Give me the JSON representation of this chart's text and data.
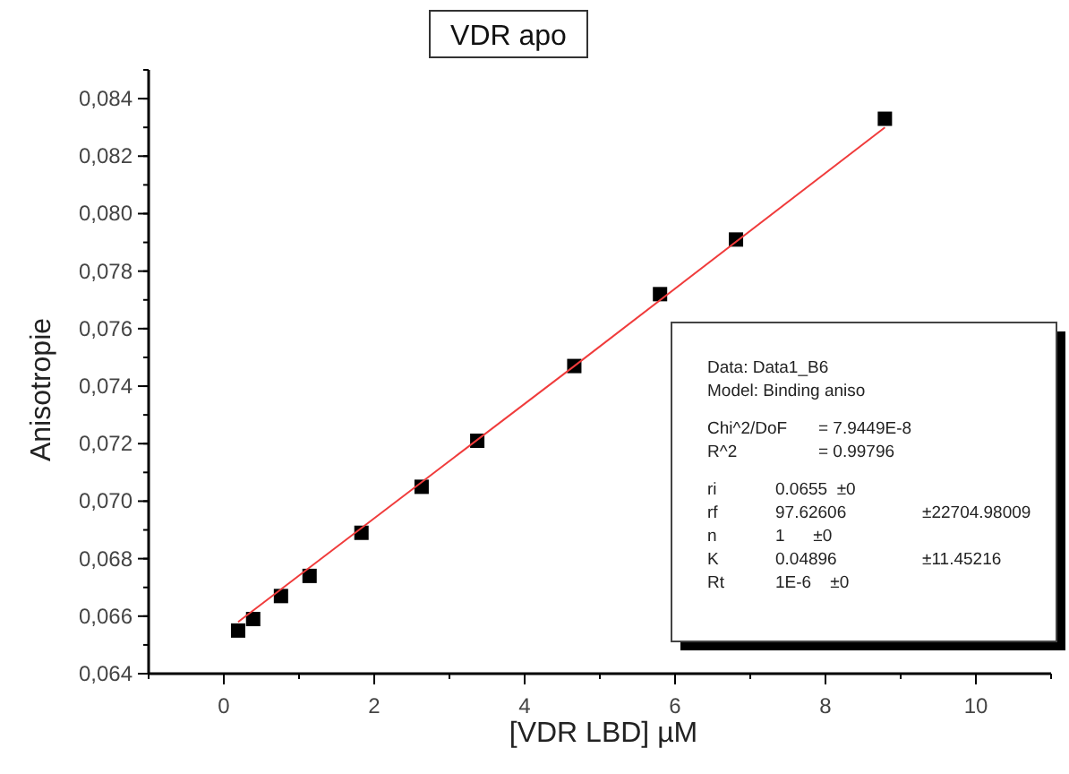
{
  "chart_data": {
    "type": "scatter",
    "title": "VDR apo",
    "xlabel": "[VDR LBD] µM",
    "ylabel": "Anisotropie",
    "xlim": [
      -1,
      11
    ],
    "xticks": [
      0,
      2,
      4,
      6,
      8,
      10
    ],
    "ylim": [
      0.064,
      0.085
    ],
    "yticks": [
      {
        "value": 0.064,
        "label": "0,064"
      },
      {
        "value": 0.066,
        "label": "0,066"
      },
      {
        "value": 0.068,
        "label": "0,068"
      },
      {
        "value": 0.07,
        "label": "0,070"
      },
      {
        "value": 0.072,
        "label": "0,072"
      },
      {
        "value": 0.074,
        "label": "0,074"
      },
      {
        "value": 0.076,
        "label": "0,076"
      },
      {
        "value": 0.078,
        "label": "0,078"
      },
      {
        "value": 0.08,
        "label": "0,080"
      },
      {
        "value": 0.082,
        "label": "0,082"
      },
      {
        "value": 0.084,
        "label": "0,084"
      }
    ],
    "series": [
      {
        "color": "#000000",
        "marker": "square",
        "x": [
          0.19,
          0.39,
          0.76,
          1.14,
          1.83,
          2.63,
          3.37,
          4.66,
          5.8,
          6.81,
          8.79
        ],
        "values": [
          0.0655,
          0.0659,
          0.0667,
          0.0674,
          0.0689,
          0.0705,
          0.0721,
          0.0747,
          0.0772,
          0.0791,
          0.0833
        ]
      },
      {
        "type": "line",
        "color": "#f03c3c",
        "line_style": "solid",
        "marker": "none",
        "x": [
          0.19,
          4.66,
          8.79
        ],
        "values": [
          0.0658,
          0.0747,
          0.083
        ]
      }
    ],
    "annotations": [
      "Data: Data1_B6",
      "Model: Binding aniso",
      "Chi^2/DoF\t= 7.9449E-8",
      "R^2\t= 0.99796",
      "ri\t0.0655  ±0",
      "rf\t97.62606\t±22704.98009",
      "n\t1      ±0",
      "K\t0.04896\t±11.45216",
      "Rt\t1E-6    ±0"
    ],
    "grid": false
  }
}
